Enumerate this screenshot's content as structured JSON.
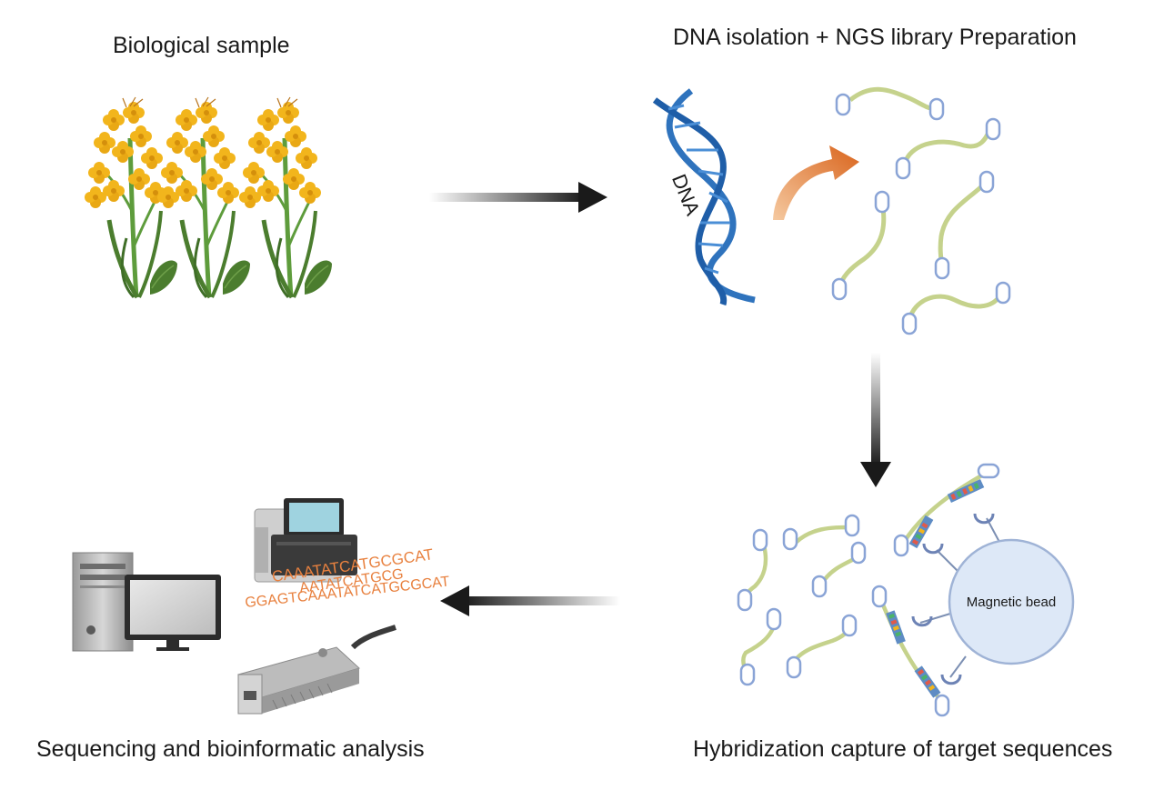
{
  "labels": {
    "biological_sample": "Biological sample",
    "dna_isolation": "DNA isolation + NGS library Preparation",
    "hybridization": "Hybridization capture of target sequences",
    "sequencing": "Sequencing and bioinformatic analysis",
    "dna": "DNA",
    "magnetic_bead": "Magnetic bead",
    "seq_line_1": "CAAATATCATGCGCAT",
    "seq_line_2": "AATATCATGCG",
    "seq_line_3": "GGAGTCAAATATCATGCGCAT"
  },
  "colors": {
    "flower": "#f2b51c",
    "stem": "#5e9c3c",
    "leaf": "#4b7d2e",
    "dna_helix": "#2f73bd",
    "fragment": "#c5d28c",
    "adapter": "#8aa4d6",
    "orange_arrow": "#e07628",
    "bead_fill": "#dde8f7",
    "bead_stroke": "#9fb3d6",
    "sequence_text": "#e8813f",
    "arrow": "#1a1a1a"
  },
  "icons": {
    "plant": "canola-plant-icon",
    "dna": "dna-helix-icon",
    "computer": "desktop-computer-icon",
    "sequencer": "benchtop-sequencer-icon",
    "nanopore": "nanopore-device-icon"
  }
}
